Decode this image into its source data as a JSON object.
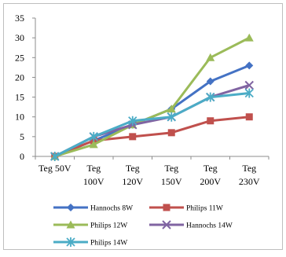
{
  "chart_data": {
    "type": "line",
    "title": "",
    "xlabel": "",
    "ylabel": "",
    "categories": [
      [
        "Teg 50V"
      ],
      [
        "Teg",
        "100V"
      ],
      [
        "Teg",
        "120V"
      ],
      [
        "Teg",
        "150V"
      ],
      [
        "Teg",
        "200V"
      ],
      [
        "Teg",
        "230V"
      ]
    ],
    "ylim": [
      0,
      35
    ],
    "yticks": [
      0,
      5,
      10,
      15,
      20,
      25,
      30,
      35
    ],
    "grid": false,
    "legend": "bottom",
    "series": [
      {
        "name": "Hannochs 8W",
        "color": "#4472C4",
        "marker": "diamond",
        "values": [
          0,
          4,
          8,
          12,
          19,
          23
        ]
      },
      {
        "name": "Philips 11W",
        "color": "#C0504D",
        "marker": "square",
        "values": [
          0,
          4,
          5,
          6,
          9,
          10
        ]
      },
      {
        "name": "Philips 12W",
        "color": "#9BBB59",
        "marker": "triangle",
        "values": [
          0,
          3,
          8,
          12,
          25,
          30
        ]
      },
      {
        "name": "Hannochs 14W",
        "color": "#8064A2",
        "marker": "x",
        "values": [
          0,
          5,
          8,
          10,
          15,
          18
        ]
      },
      {
        "name": "Philips 14W",
        "color": "#4BACC6",
        "marker": "asterisk",
        "values": [
          0,
          5,
          9,
          10,
          15,
          16
        ]
      }
    ]
  }
}
